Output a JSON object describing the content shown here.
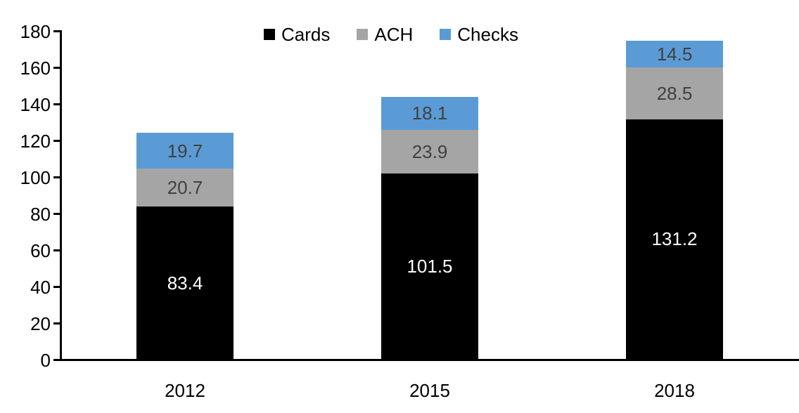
{
  "chart_data": {
    "type": "bar",
    "stacked": true,
    "title": "",
    "xlabel": "",
    "ylabel": "",
    "categories": [
      "2012",
      "2015",
      "2018"
    ],
    "series": [
      {
        "name": "Cards",
        "values": [
          83.4,
          101.5,
          131.2
        ],
        "color": "#000000",
        "label_color": "#ffffff"
      },
      {
        "name": "ACH",
        "values": [
          20.7,
          23.9,
          28.5
        ],
        "color": "#a5a5a5",
        "label_color": "#404040"
      },
      {
        "name": "Checks",
        "values": [
          19.7,
          18.1,
          14.5
        ],
        "color": "#5b9bd5",
        "label_color": "#404040"
      }
    ],
    "totals": [
      123.8,
      143.5,
      174.2
    ],
    "ylim": [
      0,
      180
    ],
    "yticks": [
      0,
      20,
      40,
      60,
      80,
      100,
      120,
      140,
      160,
      180
    ],
    "grid": false,
    "legend_position": "top-center",
    "axis_color": "#000000",
    "value_label_decimals": 1
  }
}
